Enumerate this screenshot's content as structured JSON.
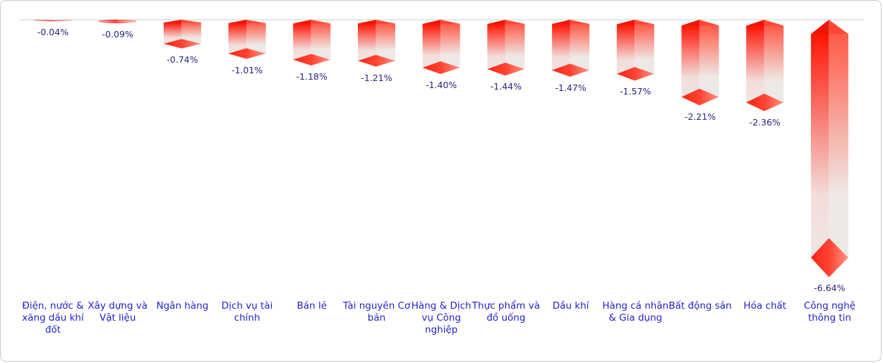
{
  "chart_data": {
    "type": "bar",
    "orientation": "vertical",
    "unit": "%",
    "title": "",
    "xlabel": "",
    "ylabel": "",
    "legend": "none",
    "baseline": 0,
    "ylim": [
      -7,
      0
    ],
    "grid": "zero-axis-line-only",
    "categories": [
      "Điện, nước & xăng dầu khí đốt",
      "Xây dựng và Vật liệu",
      "Ngân hàng",
      "Dịch vụ tài chính",
      "Bán lẻ",
      "Tài nguyên Cơ bản",
      "Hàng & Dịch vụ Công nghiệp",
      "Thực phẩm và đồ uống",
      "Dầu khí",
      "Hàng cá nhân & Gia dụng",
      "Bất động sản",
      "Hóa chất",
      "Công nghệ thông tin"
    ],
    "values": [
      -0.04,
      -0.09,
      -0.74,
      -1.01,
      -1.18,
      -1.21,
      -1.4,
      -1.44,
      -1.47,
      -1.57,
      -2.21,
      -2.36,
      -6.64
    ],
    "value_labels": [
      "-0.04%",
      "-0.09%",
      "-0.74%",
      "-1.01%",
      "-1.18%",
      "-1.21%",
      "-1.40%",
      "-1.44%",
      "-1.47%",
      "-1.57%",
      "-2.21%",
      "-2.36%",
      "-6.64%"
    ],
    "colors": {
      "bar_red_top": "#FF1405",
      "bar_red_side": "#FF5A48",
      "bar_fade_bottom": "#F0E6E3",
      "bar_cap_red": "#FF4433",
      "value_label_color": "#26267E",
      "category_label_color": "#2323CB",
      "axis_line_color": "#D8D8D8",
      "panel_border_color": "#C9C9C9"
    }
  }
}
